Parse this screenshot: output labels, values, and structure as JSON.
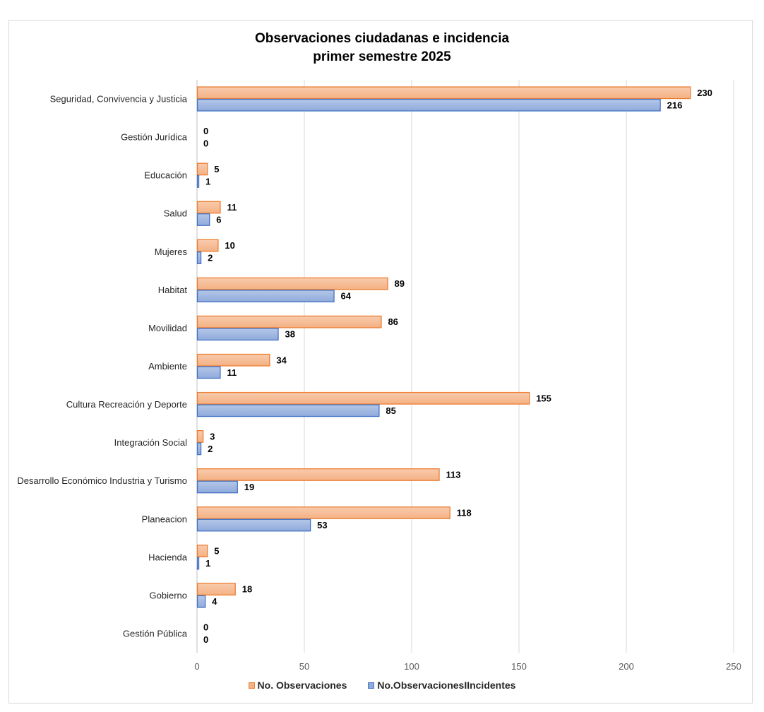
{
  "chart_data": {
    "type": "bar",
    "orientation": "horizontal",
    "title": [
      "Observaciones ciudadanas e incidencia",
      "primer semestre 2025"
    ],
    "categories": [
      "Seguridad, Convivencia y Justicia",
      "Gestión Jurídica",
      "Educación",
      "Salud",
      "Mujeres",
      "Habitat",
      "Movilidad",
      "Ambiente",
      "Cultura Recreación y Deporte",
      "Integración Social",
      "Desarrollo Económico Industria y Turismo",
      "Planeacion",
      "Hacienda",
      "Gobierno",
      "Gestión Pública"
    ],
    "series": [
      {
        "name": "No. Observaciones",
        "color": "#f4b183",
        "border": "#ed7d31",
        "values": [
          230,
          0,
          5,
          11,
          10,
          89,
          86,
          34,
          155,
          3,
          113,
          118,
          5,
          18,
          0
        ]
      },
      {
        "name": "No.ObservacionesIIncidentes",
        "color": "#8faadc",
        "border": "#4472c4",
        "values": [
          216,
          0,
          1,
          6,
          2,
          64,
          38,
          11,
          85,
          2,
          19,
          53,
          1,
          4,
          0
        ]
      }
    ],
    "xlim": [
      0,
      250
    ],
    "xticks": [
      0,
      50,
      100,
      150,
      200,
      250
    ],
    "grid": "vertical",
    "legend_position": "bottom"
  }
}
